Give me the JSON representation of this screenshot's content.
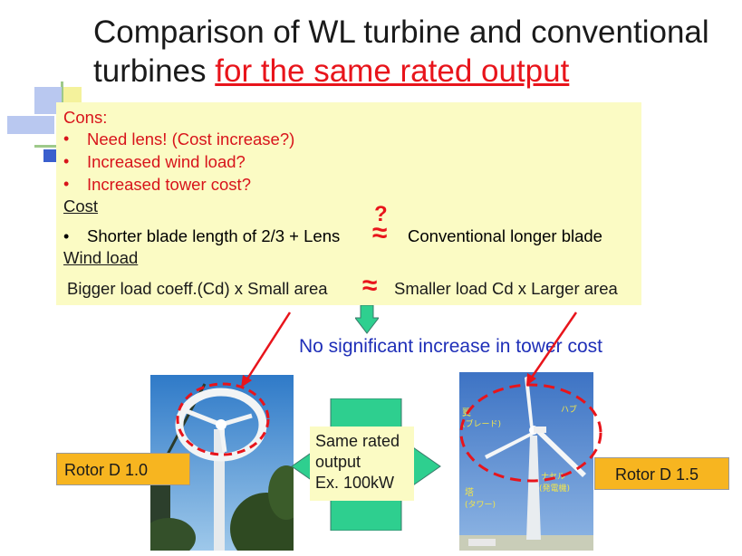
{
  "title": {
    "line1": "Comparison of  WL turbine and conventional",
    "line2_prefix": "turbines ",
    "line2_highlight": "for the same rated output"
  },
  "cons": {
    "heading": "Cons:",
    "items": [
      "Need lens! (Cost increase?)",
      "Increased wind load?",
      "Increased tower cost?"
    ]
  },
  "cost": {
    "heading": "Cost",
    "bullet": "•",
    "left": "Shorter blade length of 2/3 + Lens",
    "question": "?",
    "right": "Conventional longer blade"
  },
  "wind_load": {
    "heading": "Wind load",
    "left": "Bigger load coeff.(Cd) x Small area",
    "right": "Smaller load Cd x Larger area"
  },
  "approx_symbol": "≈",
  "conclusion": "No significant increase in tower cost",
  "rotor_left": "Rotor D 1.0",
  "rotor_right": "Rotor D 1.5",
  "rated_box": [
    "Same rated",
    "output",
    "Ex. 100kW"
  ],
  "photo_right_labels": {
    "blade": "翼",
    "blade_sub": "(ブレード)",
    "hub": "ハブ",
    "nacelle": "ナセル",
    "nacelle_sub": "(発電機)",
    "tower": "塔",
    "tower_sub": "(タワー)"
  },
  "colors": {
    "accent_red": "#e8141b",
    "box_yellow": "#fbfbc4",
    "rotor_orange": "#f7b520",
    "arrow_teal": "#2ecf8f",
    "conclusion_blue": "#1f2fb8"
  }
}
